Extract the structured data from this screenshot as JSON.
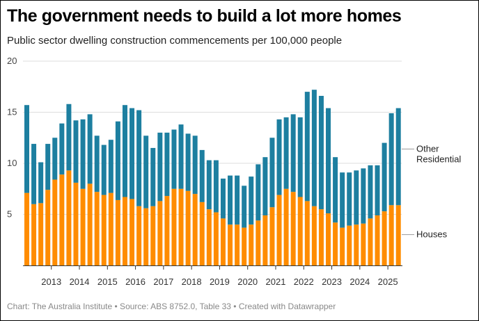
{
  "header": {
    "title": "The government needs to build a lot more homes",
    "subtitle": "Public sector dwelling construction commencements per 100,000 people"
  },
  "footer": {
    "text": "Chart: The Australia Institute  • Source: ABS 8752.0, Table 33 • Created with Datawrapper"
  },
  "chart_data": {
    "type": "bar",
    "stacked": true,
    "title": "The government needs to build a lot more homes",
    "subtitle": "Public sector dwelling construction commencements per 100,000 people",
    "xlabel": "",
    "ylabel": "",
    "ylim": [
      0,
      20
    ],
    "yticks": [
      5,
      10,
      15,
      20
    ],
    "grid": true,
    "legend": "right (inline labels)",
    "xtick_labels": [
      "2013",
      "2014",
      "2015",
      "2016",
      "2017",
      "2018",
      "2019",
      "2020",
      "2021",
      "2022",
      "2023",
      "2024",
      "2025"
    ],
    "period_start": "2012 Q1",
    "period_end": "2025 Q2",
    "categories": [
      "2012 Q1",
      "2012 Q2",
      "2012 Q3",
      "2012 Q4",
      "2013 Q1",
      "2013 Q2",
      "2013 Q3",
      "2013 Q4",
      "2014 Q1",
      "2014 Q2",
      "2014 Q3",
      "2014 Q4",
      "2015 Q1",
      "2015 Q2",
      "2015 Q3",
      "2015 Q4",
      "2016 Q1",
      "2016 Q2",
      "2016 Q3",
      "2016 Q4",
      "2017 Q1",
      "2017 Q2",
      "2017 Q3",
      "2017 Q4",
      "2018 Q1",
      "2018 Q2",
      "2018 Q3",
      "2018 Q4",
      "2019 Q1",
      "2019 Q2",
      "2019 Q3",
      "2019 Q4",
      "2020 Q1",
      "2020 Q2",
      "2020 Q3",
      "2020 Q4",
      "2021 Q1",
      "2021 Q2",
      "2021 Q3",
      "2021 Q4",
      "2022 Q1",
      "2022 Q2",
      "2022 Q3",
      "2022 Q4",
      "2023 Q1",
      "2023 Q2",
      "2023 Q3",
      "2023 Q4",
      "2024 Q1",
      "2024 Q2",
      "2024 Q3",
      "2024 Q4",
      "2025 Q1",
      "2025 Q2"
    ],
    "series": [
      {
        "name": "Houses",
        "color": "#ff8c00",
        "values": [
          7.1,
          6.0,
          6.1,
          7.4,
          8.4,
          8.9,
          9.3,
          8.1,
          7.5,
          8.0,
          7.2,
          6.9,
          7.1,
          6.4,
          6.7,
          6.5,
          5.8,
          5.6,
          5.8,
          6.3,
          6.8,
          7.5,
          7.5,
          7.3,
          7.0,
          6.2,
          5.5,
          5.2,
          4.6,
          4.0,
          4.0,
          3.7,
          4.0,
          4.4,
          4.9,
          5.7,
          6.9,
          7.5,
          7.2,
          6.7,
          6.3,
          5.8,
          5.5,
          5.1,
          4.2,
          3.7,
          3.9,
          4.0,
          4.1,
          4.6,
          4.9,
          5.3,
          5.9,
          5.9
        ]
      },
      {
        "name": "Other Residential",
        "color": "#1d7fa0",
        "values": [
          8.6,
          5.9,
          4.0,
          4.5,
          4.1,
          5.0,
          6.5,
          6.1,
          6.8,
          6.8,
          5.5,
          4.9,
          5.2,
          7.7,
          9.0,
          8.9,
          9.4,
          7.1,
          5.7,
          6.7,
          6.2,
          5.8,
          6.3,
          5.6,
          5.7,
          5.1,
          4.8,
          5.1,
          3.9,
          4.8,
          4.8,
          4.1,
          4.7,
          5.5,
          5.7,
          6.8,
          7.4,
          7.0,
          7.6,
          7.8,
          10.7,
          11.4,
          11.1,
          10.3,
          6.4,
          5.4,
          5.2,
          5.3,
          5.4,
          5.2,
          4.9,
          6.7,
          9.0,
          9.5
        ]
      }
    ]
  }
}
